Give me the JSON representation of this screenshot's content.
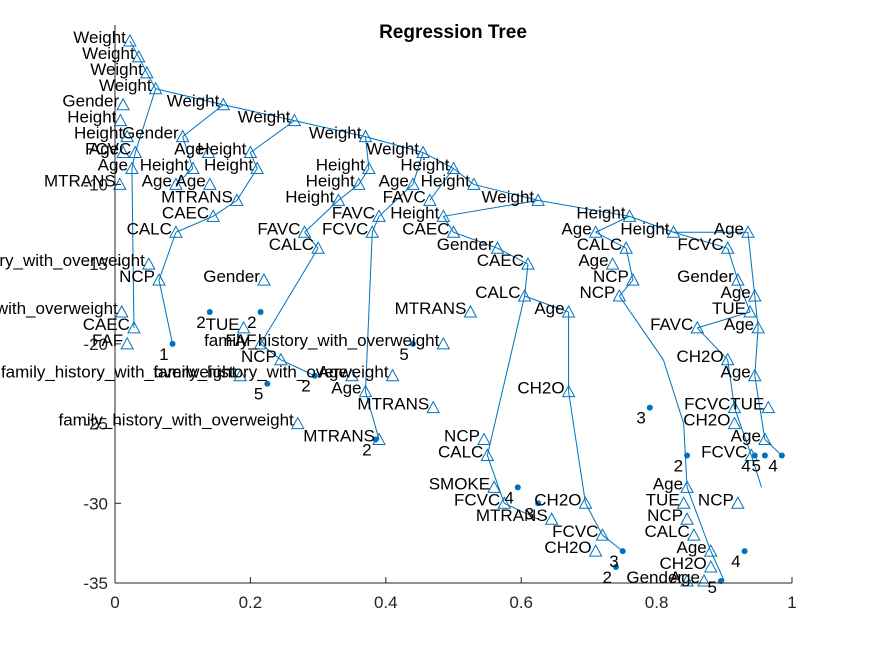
{
  "chart_data": {
    "type": "tree",
    "title": "Regression Tree",
    "xlim": [
      0,
      1
    ],
    "ylim": [
      -35,
      0
    ],
    "xticks": [
      "0",
      "0.2",
      "0.4",
      "0.6",
      "0.8",
      "1"
    ],
    "yticks": [
      "-10",
      "-15",
      "-20",
      "-25",
      "-30",
      "-35"
    ],
    "grid": false,
    "colors": {
      "edge": "#0072bd",
      "text": "#000000",
      "axis": "#262626"
    },
    "nodes": [
      {
        "label": "Weight",
        "x": 0.022,
        "y": -1
      },
      {
        "label": "Weight",
        "x": 0.035,
        "y": -2
      },
      {
        "label": "Weight",
        "x": 0.047,
        "y": -3
      },
      {
        "label": "Weight",
        "x": 0.06,
        "y": -4
      },
      {
        "label": "Weight",
        "x": 0.16,
        "y": -5
      },
      {
        "label": "Gender",
        "x": 0.012,
        "y": -5
      },
      {
        "label": "Weight",
        "x": 0.265,
        "y": -6
      },
      {
        "label": "Height",
        "x": 0.008,
        "y": -6
      },
      {
        "label": "Height",
        "x": 0.018,
        "y": -7
      },
      {
        "label": "Gender",
        "x": 0.1,
        "y": -7
      },
      {
        "label": "Weight",
        "x": 0.37,
        "y": -7
      },
      {
        "label": "Age",
        "x": 0.012,
        "y": -8
      },
      {
        "label": "FCVC",
        "x": 0.03,
        "y": -8
      },
      {
        "label": "Age",
        "x": 0.138,
        "y": -8
      },
      {
        "label": "Height",
        "x": 0.2,
        "y": -8
      },
      {
        "label": "Weight",
        "x": 0.455,
        "y": -8
      },
      {
        "label": "Age",
        "x": 0.025,
        "y": -9
      },
      {
        "label": "Height",
        "x": 0.115,
        "y": -9
      },
      {
        "label": "Height",
        "x": 0.21,
        "y": -9
      },
      {
        "label": "Height",
        "x": 0.375,
        "y": -9
      },
      {
        "label": "Height",
        "x": 0.5,
        "y": -9
      },
      {
        "label": "MTRANS",
        "x": 0.007,
        "y": -10
      },
      {
        "label": "Age",
        "x": 0.09,
        "y": -10
      },
      {
        "label": "Age",
        "x": 0.14,
        "y": -10
      },
      {
        "label": "Height",
        "x": 0.36,
        "y": -10
      },
      {
        "label": "Age",
        "x": 0.44,
        "y": -10
      },
      {
        "label": "Height",
        "x": 0.53,
        "y": -10
      },
      {
        "label": "MTRANS",
        "x": 0.18,
        "y": -11
      },
      {
        "label": "Height",
        "x": 0.33,
        "y": -11
      },
      {
        "label": "FAVC",
        "x": 0.465,
        "y": -11
      },
      {
        "label": "Weight",
        "x": 0.625,
        "y": -11
      },
      {
        "label": "CAEC",
        "x": 0.145,
        "y": -12
      },
      {
        "label": "FAVC",
        "x": 0.39,
        "y": -12
      },
      {
        "label": "Height",
        "x": 0.485,
        "y": -12
      },
      {
        "label": "Height",
        "x": 0.76,
        "y": -12
      },
      {
        "label": "Age",
        "x": 0.71,
        "y": -13
      },
      {
        "label": "Height",
        "x": 0.825,
        "y": -13
      },
      {
        "label": "Age",
        "x": 0.935,
        "y": -13
      },
      {
        "label": "FCVC",
        "x": 0.38,
        "y": -13
      },
      {
        "label": "CAEC",
        "x": 0.5,
        "y": -13
      },
      {
        "label": "Gender",
        "x": 0.565,
        "y": -14
      },
      {
        "label": "CALC",
        "x": 0.755,
        "y": -14
      },
      {
        "label": "FCVC",
        "x": 0.905,
        "y": -14
      },
      {
        "label": "Age",
        "x": 0.735,
        "y": -15
      },
      {
        "label": "CAEC",
        "x": 0.61,
        "y": -15
      },
      {
        "label": "NCP",
        "x": 0.765,
        "y": -16
      },
      {
        "label": "Gender",
        "x": 0.92,
        "y": -16
      },
      {
        "label": "CALC",
        "x": 0.605,
        "y": -17
      },
      {
        "label": "NCP",
        "x": 0.745,
        "y": -17
      },
      {
        "label": "Age",
        "x": 0.945,
        "y": -17
      },
      {
        "label": "TUE",
        "x": 0.938,
        "y": -18
      },
      {
        "label": "Age",
        "x": 0.95,
        "y": -19
      },
      {
        "label": "CH2O",
        "x": 0.905,
        "y": -21
      },
      {
        "label": "Age",
        "x": 0.945,
        "y": -22
      },
      {
        "label": "FAVC",
        "x": 0.86,
        "y": -19
      },
      {
        "label": "FCVC",
        "x": 0.915,
        "y": -24
      },
      {
        "label": "TUE",
        "x": 0.965,
        "y": -24
      },
      {
        "label": "CH2O",
        "x": 0.915,
        "y": -25
      },
      {
        "label": "Age",
        "x": 0.96,
        "y": -26
      },
      {
        "label": "FCVC",
        "x": 0.94,
        "y": -27
      },
      {
        "label": "Age",
        "x": 0.845,
        "y": -29
      },
      {
        "label": "TUE",
        "x": 0.84,
        "y": -30
      },
      {
        "label": "NCP",
        "x": 0.845,
        "y": -31
      },
      {
        "label": "CALC",
        "x": 0.855,
        "y": -32
      },
      {
        "label": "Age",
        "x": 0.88,
        "y": -33
      },
      {
        "label": "CH2O",
        "x": 0.88,
        "y": -34
      },
      {
        "label": "Gender",
        "x": 0.845,
        "y": -35
      },
      {
        "label": "Age",
        "x": 0.87,
        "y": -36
      },
      {
        "label": "MTRANS",
        "x": 0.645,
        "y": -31
      },
      {
        "label": "FCVC",
        "x": 0.72,
        "y": -32
      },
      {
        "label": "CH2O",
        "x": 0.71,
        "y": -33
      },
      {
        "label": "CH2O",
        "x": 0.695,
        "y": -30
      },
      {
        "label": "CALC",
        "x": 0.55,
        "y": -27
      },
      {
        "label": "SMOKE",
        "x": 0.56,
        "y": -29
      },
      {
        "label": "FCVC",
        "x": 0.575,
        "y": -30
      },
      {
        "label": "MTRANS",
        "x": 0.39,
        "y": -26
      },
      {
        "label": "Age",
        "x": 0.37,
        "y": -23
      },
      {
        "label": "family_history_with_overweight",
        "x": 0.185,
        "y": -22
      },
      {
        "label": "family_history_with_overweight",
        "x": 0.27,
        "y": -25
      },
      {
        "label": "family_history_with_overweight",
        "x": 0.05,
        "y": -15
      },
      {
        "label": "family_history_with_overweight",
        "x": 0.01,
        "y": -18
      },
      {
        "label": "family_history_with_overweight",
        "x": 0.41,
        "y": -22
      },
      {
        "label": "family_history_with_overweight",
        "x": 0.485,
        "y": -20
      },
      {
        "label": "MTRANS",
        "x": 0.525,
        "y": -18
      },
      {
        "label": "NCP",
        "x": 0.245,
        "y": -21
      },
      {
        "label": "FAF",
        "x": 0.215,
        "y": -20
      },
      {
        "label": "CAEC",
        "x": 0.028,
        "y": -19
      },
      {
        "label": "FAF",
        "x": 0.018,
        "y": -20
      },
      {
        "label": "CALC",
        "x": 0.09,
        "y": -13
      },
      {
        "label": "FAVC",
        "x": 0.28,
        "y": -13
      },
      {
        "label": "CALC",
        "x": 0.3,
        "y": -14
      },
      {
        "label": "TUE",
        "x": 0.19,
        "y": -19
      },
      {
        "label": "NCP",
        "x": 0.065,
        "y": -16
      },
      {
        "label": "Gender",
        "x": 0.22,
        "y": -16
      },
      {
        "label": "Age",
        "x": 0.35,
        "y": -22
      },
      {
        "label": "Age",
        "x": 0.67,
        "y": -18
      },
      {
        "label": "NCP",
        "x": 0.545,
        "y": -26
      },
      {
        "label": "CH2O",
        "x": 0.67,
        "y": -23
      },
      {
        "label": "MTRANS",
        "x": 0.47,
        "y": -24
      },
      {
        "label": "NCP",
        "x": 0.92,
        "y": -30
      }
    ],
    "edges": [
      [
        0.022,
        -1.0,
        0.035,
        -2.0
      ],
      [
        0.035,
        -2.0,
        0.047,
        -3.0
      ],
      [
        0.047,
        -3.0,
        0.06,
        -4.0
      ],
      [
        0.06,
        -4.0,
        0.16,
        -5.0
      ],
      [
        0.16,
        -5.0,
        0.265,
        -6.0
      ],
      [
        0.265,
        -6.0,
        0.37,
        -7.0
      ],
      [
        0.37,
        -7.0,
        0.455,
        -8.0
      ],
      [
        0.455,
        -8.0,
        0.5,
        -9.0
      ],
      [
        0.5,
        -9.0,
        0.53,
        -10.0
      ],
      [
        0.53,
        -10.0,
        0.625,
        -11.0
      ],
      [
        0.625,
        -11.0,
        0.76,
        -12.0
      ],
      [
        0.76,
        -12.0,
        0.825,
        -13.0
      ],
      [
        0.825,
        -13.0,
        0.935,
        -13.0
      ],
      [
        0.76,
        -12.0,
        0.71,
        -13.0
      ],
      [
        0.935,
        -13.0,
        0.945,
        -17.0
      ],
      [
        0.16,
        -5.0,
        0.1,
        -7.0
      ],
      [
        0.265,
        -6.0,
        0.2,
        -8.0
      ],
      [
        0.37,
        -7.0,
        0.375,
        -9.0
      ],
      [
        0.455,
        -8.0,
        0.44,
        -10.0
      ],
      [
        0.5,
        -9.0,
        0.465,
        -11.0
      ],
      [
        0.625,
        -11.0,
        0.485,
        -12.0
      ],
      [
        0.485,
        -12.0,
        0.5,
        -13.0
      ],
      [
        0.5,
        -13.0,
        0.565,
        -14.0
      ],
      [
        0.375,
        -9.0,
        0.36,
        -10.0
      ],
      [
        0.36,
        -10.0,
        0.33,
        -11.0
      ],
      [
        0.2,
        -8.0,
        0.21,
        -9.0
      ],
      [
        0.21,
        -9.0,
        0.18,
        -11.0
      ],
      [
        0.1,
        -7.0,
        0.115,
        -9.0
      ],
      [
        0.115,
        -9.0,
        0.09,
        -10.0
      ],
      [
        0.06,
        -4.0,
        0.03,
        -8.0
      ],
      [
        0.945,
        -17.0,
        0.95,
        -19.0
      ],
      [
        0.95,
        -19.0,
        0.945,
        -22.0
      ],
      [
        0.945,
        -22.0,
        0.96,
        -26.0
      ],
      [
        0.96,
        -26.0,
        0.985,
        -27.0
      ],
      [
        0.825,
        -13.0,
        0.905,
        -14.0
      ],
      [
        0.905,
        -14.0,
        0.92,
        -16.0
      ],
      [
        0.92,
        -16.0,
        0.938,
        -18.0
      ],
      [
        0.938,
        -18.0,
        0.86,
        -19.0
      ],
      [
        0.86,
        -19.0,
        0.905,
        -21.0
      ],
      [
        0.905,
        -21.0,
        0.915,
        -24.0
      ],
      [
        0.915,
        -24.0,
        0.94,
        -27.0
      ],
      [
        0.94,
        -27.0,
        0.955,
        -29.0
      ],
      [
        0.71,
        -13.0,
        0.755,
        -14.0
      ],
      [
        0.755,
        -14.0,
        0.765,
        -16.0
      ],
      [
        0.765,
        -16.0,
        0.745,
        -17.0
      ],
      [
        0.745,
        -17.0,
        0.81,
        -21.0
      ],
      [
        0.81,
        -21.0,
        0.84,
        -25.0
      ],
      [
        0.84,
        -25.0,
        0.845,
        -29.0
      ],
      [
        0.845,
        -29.0,
        0.88,
        -33.0
      ],
      [
        0.88,
        -33.0,
        0.9,
        -35.0
      ],
      [
        0.565,
        -14.0,
        0.61,
        -15.0
      ],
      [
        0.61,
        -15.0,
        0.605,
        -17.0
      ],
      [
        0.605,
        -17.0,
        0.67,
        -18.0
      ],
      [
        0.67,
        -18.0,
        0.67,
        -23.0
      ],
      [
        0.67,
        -23.0,
        0.695,
        -30.0
      ],
      [
        0.695,
        -30.0,
        0.72,
        -32.0
      ],
      [
        0.72,
        -32.0,
        0.75,
        -33.0
      ],
      [
        0.605,
        -17.0,
        0.55,
        -27.0
      ],
      [
        0.55,
        -27.0,
        0.575,
        -30.0
      ],
      [
        0.575,
        -30.0,
        0.625,
        -31.0
      ],
      [
        0.44,
        -10.0,
        0.39,
        -12.0
      ],
      [
        0.39,
        -12.0,
        0.38,
        -13.0
      ],
      [
        0.38,
        -13.0,
        0.37,
        -23.0
      ],
      [
        0.37,
        -23.0,
        0.39,
        -26.0
      ],
      [
        0.18,
        -11.0,
        0.145,
        -12.0
      ],
      [
        0.145,
        -12.0,
        0.09,
        -13.0
      ],
      [
        0.09,
        -13.0,
        0.065,
        -16.0
      ],
      [
        0.065,
        -16.0,
        0.085,
        -20.0
      ],
      [
        0.33,
        -11.0,
        0.28,
        -13.0
      ],
      [
        0.28,
        -13.0,
        0.3,
        -14.0
      ],
      [
        0.3,
        -14.0,
        0.215,
        -20.0
      ],
      [
        0.215,
        -20.0,
        0.245,
        -21.0
      ],
      [
        0.245,
        -21.0,
        0.295,
        -22.0
      ],
      [
        0.03,
        -8.0,
        0.025,
        -9.0
      ],
      [
        0.025,
        -9.0,
        0.028,
        -19.0
      ]
    ],
    "leaves": [
      {
        "label": "1",
        "x": 0.085,
        "y": -20.0
      },
      {
        "label": "2",
        "x": 0.14,
        "y": -18.0
      },
      {
        "label": "2",
        "x": 0.215,
        "y": -18.0
      },
      {
        "label": "5",
        "x": 0.225,
        "y": -22.5
      },
      {
        "label": "2",
        "x": 0.295,
        "y": -22.0
      },
      {
        "label": "2",
        "x": 0.385,
        "y": -26.0
      },
      {
        "label": "5",
        "x": 0.44,
        "y": -20.0
      },
      {
        "label": "4",
        "x": 0.595,
        "y": -29.0
      },
      {
        "label": "3",
        "x": 0.625,
        "y": -30.0
      },
      {
        "label": "2",
        "x": 0.74,
        "y": -34.0
      },
      {
        "label": "3",
        "x": 0.75,
        "y": -33.0
      },
      {
        "label": "3",
        "x": 0.79,
        "y": -24.0
      },
      {
        "label": "2",
        "x": 0.845,
        "y": -27.0
      },
      {
        "label": "5",
        "x": 0.895,
        "y": -35.0
      },
      {
        "label": "4",
        "x": 0.93,
        "y": -33.0
      },
      {
        "label": "4",
        "x": 0.945,
        "y": -27.0
      },
      {
        "label": "5",
        "x": 0.96,
        "y": -27.0
      },
      {
        "label": "4",
        "x": 0.985,
        "y": -27.0
      }
    ]
  }
}
